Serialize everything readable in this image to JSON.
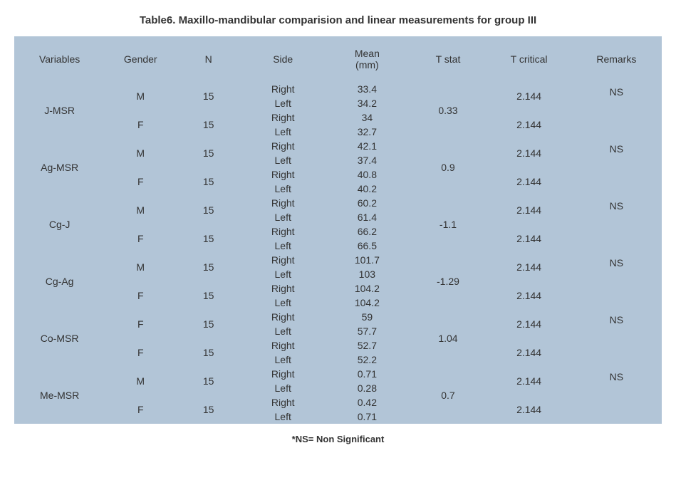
{
  "title": "Table6. Maxillo-mandibular comparision and linear measurements for group III",
  "footnote": "*NS= Non Significant",
  "columns": [
    "Variables",
    "Gender",
    "N",
    "Side",
    "Mean (mm)",
    "T stat",
    "T critical",
    "Remarks"
  ],
  "col_widths": [
    "14%",
    "11%",
    "10%",
    "13%",
    "13%",
    "12%",
    "13%",
    "14%"
  ],
  "colors": {
    "header_bg": "#b2c5d7",
    "cell_bg": "#b2c5d7",
    "text": "#333333",
    "body_bg": "#ffffff"
  },
  "font": {
    "family": "Arial, sans-serif",
    "title_size_pt": 15,
    "header_size_pt": 14,
    "cell_size_pt": 14,
    "footnote_size_pt": 13
  },
  "groups": [
    {
      "variable": "J-MSR",
      "t_stat": "0.33",
      "remarks": "NS",
      "subrows": [
        {
          "gender": "M",
          "n": "15",
          "side1": "Right",
          "mean1": "33.4",
          "side2": "Left",
          "mean2": "34.2",
          "t_crit": "2.144"
        },
        {
          "gender": "F",
          "n": "15",
          "side1": "Right",
          "mean1": "34",
          "side2": "Left",
          "mean2": "32.7",
          "t_crit": "2.144"
        }
      ]
    },
    {
      "variable": "Ag-MSR",
      "t_stat": "0.9",
      "remarks": "NS",
      "subrows": [
        {
          "gender": "M",
          "n": "15",
          "side1": "Right",
          "mean1": "42.1",
          "side2": "Left",
          "mean2": "37.4",
          "t_crit": "2.144"
        },
        {
          "gender": "F",
          "n": "15",
          "side1": "Right",
          "mean1": "40.8",
          "side2": "Left",
          "mean2": "40.2",
          "t_crit": "2.144"
        }
      ]
    },
    {
      "variable": "Cg-J",
      "t_stat": "-1.1",
      "remarks": "NS",
      "subrows": [
        {
          "gender": "M",
          "n": "15",
          "side1": "Right",
          "mean1": "60.2",
          "side2": "Left",
          "mean2": "61.4",
          "t_crit": "2.144"
        },
        {
          "gender": "F",
          "n": "15",
          "side1": "Right",
          "mean1": "66.2",
          "side2": "Left",
          "mean2": "66.5",
          "t_crit": "2.144"
        }
      ]
    },
    {
      "variable": "Cg-Ag",
      "t_stat": "-1.29",
      "remarks": "NS",
      "subrows": [
        {
          "gender": "M",
          "n": "15",
          "side1": "Right",
          "mean1": "101.7",
          "side2": "Left",
          "mean2": "103",
          "t_crit": "2.144"
        },
        {
          "gender": "F",
          "n": "15",
          "side1": "Right",
          "mean1": "104.2",
          "side2": "Left",
          "mean2": "104.2",
          "t_crit": "2.144"
        }
      ]
    },
    {
      "variable": "Co-MSR",
      "t_stat": "1.04",
      "remarks": "NS",
      "subrows": [
        {
          "gender": "F",
          "n": "15",
          "side1": "Right",
          "mean1": "59",
          "side2": "Left",
          "mean2": "57.7",
          "t_crit": "2.144"
        },
        {
          "gender": "F",
          "n": "15",
          "side1": "Right",
          "mean1": "52.7",
          "side2": "Left",
          "mean2": "52.2",
          "t_crit": "2.144"
        }
      ]
    },
    {
      "variable": "Me-MSR",
      "t_stat": "0.7",
      "remarks": "NS",
      "subrows": [
        {
          "gender": "M",
          "n": "15",
          "side1": "Right",
          "mean1": "0.71",
          "side2": "Left",
          "mean2": "0.28",
          "t_crit": "2.144"
        },
        {
          "gender": "F",
          "n": "15",
          "side1": "Right",
          "mean1": "0.42",
          "side2": "Left",
          "mean2": "0.71",
          "t_crit": "2.144"
        }
      ]
    }
  ]
}
